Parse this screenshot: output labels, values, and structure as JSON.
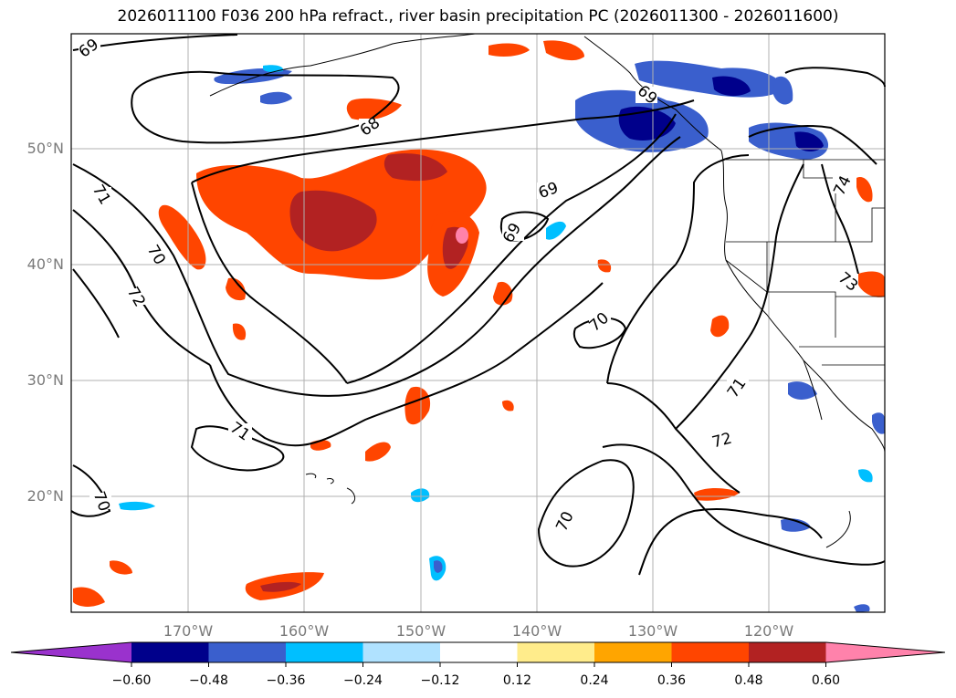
{
  "title": "2026011100 F036 200 hPa refract., river basin precipitation PC (2026011300 - 2026011600)",
  "latitude_labels": [
    "50°N",
    "40°N",
    "30°N",
    "20°N"
  ],
  "longitude_labels": [
    "170°W",
    "160°W",
    "150°W",
    "140°W",
    "130°W",
    "120°W"
  ],
  "colorbar": {
    "colors": [
      "#9a32cd",
      "#00008b",
      "#3a5fcd",
      "#00bfff",
      "#b0e2ff",
      "#ffffff",
      "#ffec8b",
      "#ffa500",
      "#ff4500",
      "#b22222",
      "#ff82ab"
    ],
    "tick_labels": [
      "−0.60",
      "−0.48",
      "−0.36",
      "−0.24",
      "−0.12",
      "0.12",
      "0.24",
      "0.36",
      "0.48",
      "0.60"
    ]
  },
  "contour_labels": [
    "69",
    "68",
    "69",
    "69",
    "71",
    "70",
    "72",
    "70",
    "71",
    "70",
    "70",
    "71",
    "72",
    "74",
    "73",
    "69"
  ]
}
